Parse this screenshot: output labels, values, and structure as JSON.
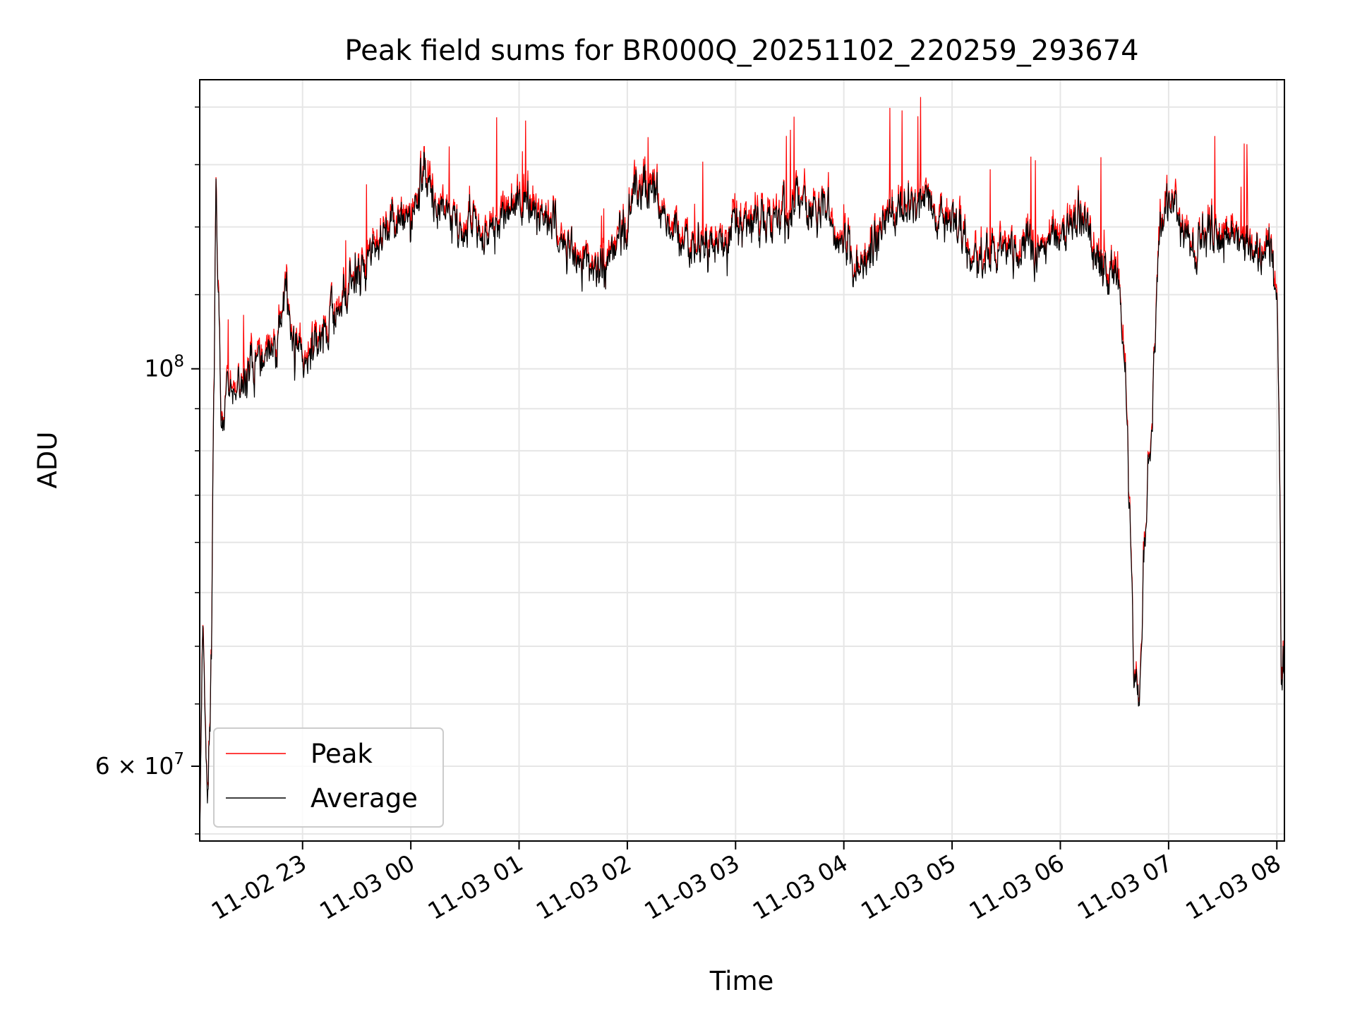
{
  "chart_data": {
    "type": "line",
    "title": "Peak field sums for BR000Q_20251102_220259_293674",
    "xlabel": "Time",
    "ylabel": "ADU",
    "yscale": "log",
    "ylim": [
      54500000,
      145000000
    ],
    "xlim_hours": [
      22.05,
      32.07
    ],
    "grid": true,
    "legend_location": "lower-left",
    "x_ticks": [
      {
        "hour": 23,
        "label": "11-02 23"
      },
      {
        "hour": 24,
        "label": "11-03 00"
      },
      {
        "hour": 25,
        "label": "11-03 01"
      },
      {
        "hour": 26,
        "label": "11-03 02"
      },
      {
        "hour": 27,
        "label": "11-03 03"
      },
      {
        "hour": 28,
        "label": "11-03 04"
      },
      {
        "hour": 29,
        "label": "11-03 05"
      },
      {
        "hour": 30,
        "label": "11-03 06"
      },
      {
        "hour": 31,
        "label": "11-03 07"
      },
      {
        "hour": 32,
        "label": "11-03 08"
      }
    ],
    "y_major_ticks": [
      {
        "value": 100000000,
        "mantissa": "",
        "base": "10",
        "exponent": "8"
      },
      {
        "value": 60000000,
        "mantissa": "6 × ",
        "base": "10",
        "exponent": "7"
      }
    ],
    "y_minor_ticks": [
      55000000,
      65000000,
      70000000,
      75000000,
      80000000,
      85000000,
      90000000,
      95000000,
      110000000,
      120000000,
      130000000,
      140000000
    ],
    "average_profile": [
      [
        22.05,
        55000000
      ],
      [
        22.08,
        72000000
      ],
      [
        22.12,
        58000000
      ],
      [
        22.16,
        70000000
      ],
      [
        22.2,
        123000000
      ],
      [
        22.25,
        92000000
      ],
      [
        22.3,
        100000000
      ],
      [
        22.4,
        97000000
      ],
      [
        22.5,
        100000000
      ],
      [
        22.6,
        102000000
      ],
      [
        22.75,
        101000000
      ],
      [
        22.85,
        111000000
      ],
      [
        22.92,
        102000000
      ],
      [
        23.05,
        101000000
      ],
      [
        23.2,
        106000000
      ],
      [
        23.4,
        110000000
      ],
      [
        23.6,
        116000000
      ],
      [
        23.8,
        119000000
      ],
      [
        24.0,
        122000000
      ],
      [
        24.1,
        128000000
      ],
      [
        24.3,
        122000000
      ],
      [
        24.5,
        120000000
      ],
      [
        24.7,
        119000000
      ],
      [
        25.0,
        123000000
      ],
      [
        25.2,
        122000000
      ],
      [
        25.5,
        116000000
      ],
      [
        25.75,
        114000000
      ],
      [
        26.0,
        120000000
      ],
      [
        26.05,
        126000000
      ],
      [
        26.2,
        126000000
      ],
      [
        26.5,
        117000000
      ],
      [
        26.8,
        117000000
      ],
      [
        27.0,
        120000000
      ],
      [
        27.3,
        121000000
      ],
      [
        27.6,
        123000000
      ],
      [
        27.8,
        123000000
      ],
      [
        27.9,
        119000000
      ],
      [
        28.1,
        115000000
      ],
      [
        28.2,
        113000000
      ],
      [
        28.35,
        120000000
      ],
      [
        28.6,
        124000000
      ],
      [
        28.8,
        123000000
      ],
      [
        29.0,
        122000000
      ],
      [
        29.2,
        115000000
      ],
      [
        29.5,
        117000000
      ],
      [
        29.8,
        117000000
      ],
      [
        30.0,
        119000000
      ],
      [
        30.2,
        122000000
      ],
      [
        30.35,
        115000000
      ],
      [
        30.45,
        113000000
      ],
      [
        30.5,
        114000000
      ],
      [
        30.55,
        109000000
      ],
      [
        30.6,
        100000000
      ],
      [
        30.65,
        80000000
      ],
      [
        30.68,
        66000000
      ],
      [
        30.73,
        67000000
      ],
      [
        30.78,
        80000000
      ],
      [
        30.85,
        95000000
      ],
      [
        30.92,
        120000000
      ],
      [
        31.0,
        124000000
      ],
      [
        31.1,
        122000000
      ],
      [
        31.2,
        116000000
      ],
      [
        31.3,
        118000000
      ],
      [
        31.5,
        118000000
      ],
      [
        31.7,
        118000000
      ],
      [
        31.85,
        116000000
      ],
      [
        31.95,
        115000000
      ],
      [
        32.0,
        110000000
      ],
      [
        32.02,
        95000000
      ],
      [
        32.04,
        67000000
      ],
      [
        32.07,
        69000000
      ]
    ],
    "series": [
      {
        "name": "Peak",
        "color": "#ff0000"
      },
      {
        "name": "Average",
        "color": "#000000"
      }
    ]
  }
}
